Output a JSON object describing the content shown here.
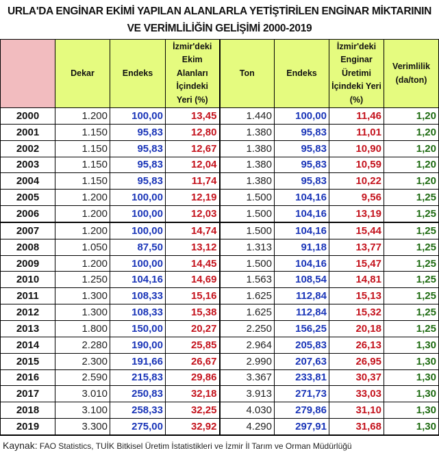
{
  "title_line1": "URLA'DA ENGİNAR EKİMİ YAPILAN ALANLARLA YETİŞTİRİLEN ENGİNAR MİKTARININ",
  "title_line2": "VE VERİMLİLİĞİN GELİŞİMİ 2000-2019",
  "headers": [
    "",
    "Dekar",
    "Endeks",
    "İzmir'deki Ekim Alanları İçindeki Yeri (%)",
    "Ton",
    "Endeks",
    "İzmir'deki Enginar Üretimi İçindeki Yeri (%)",
    "Verimlilik (da/ton)"
  ],
  "rows": [
    [
      "2000",
      "1.200",
      "100,00",
      "13,45",
      "1.440",
      "100,00",
      "11,46",
      "1,20"
    ],
    [
      "2001",
      "1.150",
      "95,83",
      "12,80",
      "1.380",
      "95,83",
      "11,01",
      "1,20"
    ],
    [
      "2002",
      "1.150",
      "95,83",
      "12,67",
      "1.380",
      "95,83",
      "10,90",
      "1,20"
    ],
    [
      "2003",
      "1.150",
      "95,83",
      "12,04",
      "1.380",
      "95,83",
      "10,59",
      "1,20"
    ],
    [
      "2004",
      "1.150",
      "95,83",
      "11,74",
      "1.380",
      "95,83",
      "10,22",
      "1,20"
    ],
    [
      "2005",
      "1.200",
      "100,00",
      "12,19",
      "1.500",
      "104,16",
      "9,56",
      "1,25"
    ],
    [
      "2006",
      "1.200",
      "100,00",
      "12,03",
      "1.500",
      "104,16",
      "13,19",
      "1,25"
    ],
    [
      "2007",
      "1.200",
      "100,00",
      "14,74",
      "1.500",
      "104,16",
      "15,44",
      "1,25"
    ],
    [
      "2008",
      "1.050",
      "87,50",
      "13,12",
      "1.313",
      "91,18",
      "13,77",
      "1,25"
    ],
    [
      "2009",
      "1.200",
      "100,00",
      "14,45",
      "1.500",
      "104,16",
      "15,47",
      "1,25"
    ],
    [
      "2010",
      "1.250",
      "104,16",
      "14,69",
      "1.563",
      "108,54",
      "14,81",
      "1,25"
    ],
    [
      "2011",
      "1.300",
      "108,33",
      "15,16",
      "1.625",
      "112,84",
      "15,13",
      "1,25"
    ],
    [
      "2012",
      "1.300",
      "108,33",
      "15,38",
      "1.625",
      "112,84",
      "15,32",
      "1,25"
    ],
    [
      "2013",
      "1.800",
      "150,00",
      "20,27",
      "2.250",
      "156,25",
      "20,18",
      "1,25"
    ],
    [
      "2014",
      "2.280",
      "190,00",
      "25,85",
      "2.964",
      "205,83",
      "26,13",
      "1,30"
    ],
    [
      "2015",
      "2.300",
      "191,66",
      "26,67",
      "2.990",
      "207,63",
      "26,95",
      "1,30"
    ],
    [
      "2016",
      "2.590",
      "215,83",
      "29,86",
      "3.367",
      "233,81",
      "30,37",
      "1,30"
    ],
    [
      "2017",
      "3.010",
      "250,83",
      "32,18",
      "3.913",
      "271,73",
      "33,03",
      "1,30"
    ],
    [
      "2018",
      "3.100",
      "258,33",
      "32,25",
      "4.030",
      "279,86",
      "31,10",
      "1,30"
    ],
    [
      "2019",
      "3.300",
      "275,00",
      "32,92",
      "4.290",
      "297,91",
      "31,68",
      "1,30"
    ]
  ],
  "source_label": "Kaynak:",
  "source_text": " FAO Statistics, TUİK Bitkisel Üretim İstatistikleri ve İzmir İl Tarım ve Orman Müdürlüğü",
  "colors": {
    "header_bg": "#e5fb7f",
    "corner_bg": "#f2bcbf",
    "index": "#1a35b8",
    "percent": "#c4121c",
    "productivity": "#1f6b12"
  }
}
